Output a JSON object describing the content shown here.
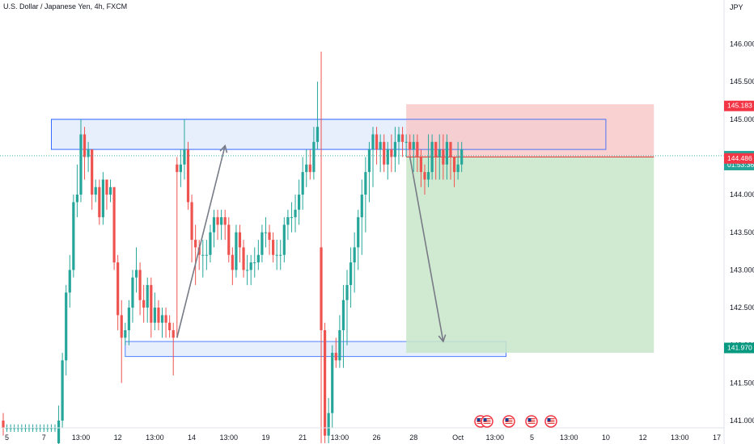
{
  "header": {
    "title": "U.S. Dollar / Japanese Yen, 4h, FXCM"
  },
  "chart_data": {
    "type": "candlestick",
    "symbol": "U.S. Dollar / Japanese Yen, 4h, FXCM",
    "currency_label": "JPY",
    "ylim": [
      140.72,
      146.5
    ],
    "y_ticks": [
      "146.000",
      "145.500",
      "145.000",
      "144.500",
      "144.000",
      "143.500",
      "143.000",
      "142.500",
      "142.000",
      "141.500",
      "141.000"
    ],
    "x_ticks": [
      "5",
      "7",
      "13:00",
      "12",
      "13:00",
      "14",
      "13:00",
      "19",
      "21",
      "13:00",
      "26",
      "28",
      "Oct",
      "13:00",
      "5",
      "13:00",
      "10",
      "12",
      "13:00",
      "17"
    ],
    "x_tick_index": [
      1,
      11,
      21,
      31,
      41,
      51,
      61,
      71,
      81,
      91,
      101,
      111,
      123,
      133,
      143,
      153,
      163,
      173,
      183,
      193
    ],
    "price_tags": {
      "take_profit_top": "145.183",
      "current_price": "144.516",
      "countdown": "01:53:36",
      "entry": "144.486",
      "stop_target": "141.970"
    },
    "colors": {
      "up": "#26a69a",
      "down": "#ef5350",
      "zone_fill": "#e3ecfb",
      "zone_stroke": "#2962ff",
      "risk": "#f7c5c5",
      "reward": "#c8e6c9",
      "arrow": "#787b86"
    },
    "zones": [
      {
        "name": "resistance",
        "top": 145.0,
        "bottom": 144.6,
        "start": 13,
        "end": 163
      },
      {
        "name": "support",
        "top": 142.05,
        "bottom": 141.85,
        "start": 33,
        "end": 136
      }
    ],
    "position": {
      "type": "short",
      "entry": 144.5,
      "stop": 145.2,
      "target": 141.9,
      "start": 109,
      "end": 176
    },
    "arrows": [
      {
        "from": [
          47,
          142.1
        ],
        "to": [
          60,
          144.65
        ]
      },
      {
        "from": [
          110,
          144.5
        ],
        "to": [
          119,
          142.05
        ]
      }
    ],
    "candles": {
      "index_start": 0,
      "spacing_note": "approximately 4.57px per candle, index 0 at left edge",
      "o": [
        141.0,
        140.9,
        140.9,
        140.9,
        140.9,
        140.9,
        140.9,
        140.9,
        140.9,
        140.9,
        140.9,
        140.9,
        140.9,
        140.9,
        140.9,
        140.7,
        141.0,
        141.8,
        142.7,
        143.0,
        143.9,
        144.0,
        144.8,
        144.5,
        144.6,
        144.0,
        144.1,
        143.7,
        144.2,
        144.0,
        144.1,
        143.1,
        142.4,
        142.1,
        142.2,
        142.5,
        142.9,
        143.0,
        142.6,
        142.5,
        142.8,
        142.3,
        142.5,
        142.3,
        142.4,
        142.3,
        142.2,
        144.4,
        144.3,
        144.4,
        144.6,
        143.9,
        143.4,
        143.3,
        143.2,
        143.2,
        143.2,
        143.5,
        143.7,
        143.6,
        143.7,
        143.6,
        143.2,
        143.0,
        143.5,
        143.3,
        143.0,
        143.0,
        143.1,
        143.1,
        143.2,
        143.5,
        143.5,
        143.4,
        143.2,
        143.2,
        143.2,
        143.6,
        143.7,
        143.7,
        143.8,
        144.0,
        144.3,
        144.4,
        144.3,
        144.7,
        143.3,
        142.2,
        140.8,
        141.1,
        141.9,
        141.8,
        142.2,
        142.6,
        142.8,
        143.1,
        143.3,
        143.7,
        144.0,
        144.3,
        144.6,
        144.8,
        144.6,
        144.7,
        144.4,
        144.6,
        144.5,
        144.7,
        144.8,
        144.7,
        144.7,
        144.6,
        144.7,
        144.5,
        144.3,
        144.2,
        144.3,
        144.7,
        144.5,
        144.6,
        144.4,
        144.7,
        144.5,
        144.3,
        144.4
      ],
      "c": [
        140.9,
        140.9,
        140.9,
        140.9,
        140.9,
        140.9,
        140.9,
        140.9,
        140.9,
        140.9,
        140.9,
        140.9,
        140.9,
        140.9,
        140.9,
        141.0,
        141.8,
        142.7,
        143.0,
        143.9,
        144.0,
        144.8,
        144.5,
        144.6,
        144.0,
        144.1,
        143.7,
        144.2,
        144.0,
        144.1,
        143.1,
        142.4,
        142.1,
        142.2,
        142.5,
        142.9,
        143.0,
        142.6,
        142.5,
        142.8,
        142.3,
        142.5,
        142.3,
        142.4,
        142.3,
        142.2,
        142.1,
        144.3,
        144.4,
        144.6,
        143.9,
        143.4,
        143.3,
        143.2,
        143.2,
        143.2,
        143.5,
        143.7,
        143.6,
        143.7,
        143.6,
        143.2,
        143.0,
        143.5,
        143.3,
        143.0,
        143.0,
        143.1,
        143.1,
        143.2,
        143.5,
        143.5,
        143.4,
        143.2,
        143.2,
        143.2,
        143.6,
        143.7,
        143.7,
        143.8,
        144.0,
        144.3,
        144.4,
        144.3,
        144.7,
        144.9,
        142.2,
        140.8,
        141.1,
        141.9,
        141.8,
        142.2,
        142.6,
        142.8,
        143.1,
        143.3,
        143.7,
        144.0,
        144.3,
        144.6,
        144.8,
        144.6,
        144.7,
        144.4,
        144.6,
        144.5,
        144.7,
        144.8,
        144.7,
        144.7,
        144.6,
        144.7,
        144.5,
        144.3,
        144.2,
        144.3,
        144.7,
        144.5,
        144.6,
        144.4,
        144.7,
        144.5,
        144.3,
        144.4,
        144.6
      ],
      "h": [
        141.1,
        140.95,
        140.95,
        140.95,
        140.95,
        140.95,
        140.95,
        140.95,
        140.95,
        140.95,
        140.95,
        140.95,
        140.95,
        140.95,
        140.95,
        141.2,
        141.9,
        142.8,
        143.2,
        144.0,
        144.4,
        145.0,
        144.9,
        144.7,
        144.6,
        144.2,
        144.2,
        144.3,
        144.2,
        144.2,
        144.1,
        143.2,
        142.6,
        142.3,
        142.6,
        143.0,
        143.3,
        143.1,
        142.8,
        142.9,
        142.9,
        142.7,
        142.6,
        142.5,
        142.5,
        142.4,
        142.3,
        144.5,
        144.6,
        145.0,
        144.7,
        144.0,
        143.6,
        143.4,
        143.4,
        143.4,
        143.6,
        143.8,
        143.8,
        143.8,
        143.8,
        143.7,
        143.3,
        143.6,
        143.6,
        143.4,
        143.2,
        143.2,
        143.3,
        143.4,
        143.6,
        143.7,
        143.6,
        143.5,
        143.4,
        143.4,
        143.7,
        143.8,
        143.9,
        144.0,
        144.2,
        144.5,
        144.6,
        144.6,
        144.9,
        145.5,
        145.9,
        142.3,
        141.3,
        142.0,
        142.1,
        142.4,
        142.8,
        143.0,
        143.3,
        143.5,
        143.8,
        144.2,
        144.5,
        144.7,
        144.9,
        144.9,
        144.8,
        144.8,
        144.7,
        144.8,
        144.9,
        144.9,
        144.9,
        144.8,
        144.8,
        144.8,
        144.8,
        144.6,
        144.4,
        144.8,
        144.8,
        144.7,
        144.8,
        144.8,
        144.8,
        144.6,
        144.5,
        144.7,
        144.7
      ],
      "l": [
        140.8,
        140.85,
        140.85,
        140.85,
        140.85,
        140.85,
        140.85,
        140.85,
        140.85,
        140.85,
        140.85,
        140.85,
        140.85,
        140.85,
        140.85,
        140.6,
        140.9,
        141.6,
        142.5,
        142.9,
        143.7,
        143.9,
        144.2,
        144.3,
        143.8,
        143.9,
        143.6,
        143.6,
        143.8,
        143.9,
        143.0,
        142.2,
        141.5,
        142.0,
        142.0,
        142.3,
        142.7,
        142.4,
        142.3,
        142.3,
        142.1,
        142.2,
        142.2,
        142.1,
        142.1,
        142.1,
        141.6,
        142.1,
        144.1,
        144.2,
        143.8,
        143.1,
        142.8,
        143.0,
        142.9,
        143.0,
        143.1,
        143.3,
        143.4,
        143.4,
        143.4,
        143.1,
        142.8,
        142.9,
        143.1,
        142.9,
        142.8,
        142.8,
        142.9,
        143.0,
        143.1,
        143.3,
        143.2,
        143.1,
        143.0,
        143.0,
        143.1,
        143.4,
        143.5,
        143.5,
        143.6,
        143.8,
        144.1,
        144.2,
        144.2,
        144.6,
        140.7,
        140.7,
        140.7,
        140.9,
        141.7,
        141.7,
        141.7,
        142.0,
        142.5,
        142.7,
        143.0,
        143.2,
        143.5,
        143.9,
        144.1,
        144.4,
        144.3,
        144.3,
        144.2,
        144.3,
        144.3,
        144.4,
        144.5,
        144.5,
        144.5,
        144.3,
        144.3,
        144.1,
        144.0,
        144.1,
        144.2,
        144.2,
        144.2,
        144.2,
        144.2,
        144.2,
        144.1,
        144.2,
        144.3
      ]
    }
  },
  "ui": {
    "event_icons": [
      {
        "name": "us-flag-event"
      },
      {
        "name": "us-flag-event"
      },
      {
        "name": "us-flag-event"
      },
      {
        "name": "us-flag-event"
      },
      {
        "name": "us-flag-event"
      }
    ]
  }
}
